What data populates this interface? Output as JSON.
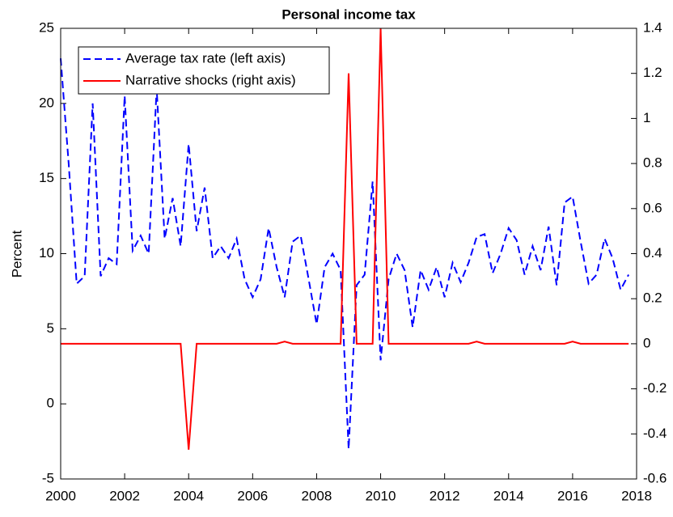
{
  "chart_data": {
    "type": "line",
    "title": "Personal income tax",
    "ylabel": "Percent",
    "x": [
      2000,
      2000.25,
      2000.5,
      2000.75,
      2001,
      2001.25,
      2001.5,
      2001.75,
      2002,
      2002.25,
      2002.5,
      2002.75,
      2003,
      2003.25,
      2003.5,
      2003.75,
      2004,
      2004.25,
      2004.5,
      2004.75,
      2005,
      2005.25,
      2005.5,
      2005.75,
      2006,
      2006.25,
      2006.5,
      2006.75,
      2007,
      2007.25,
      2007.5,
      2007.75,
      2008,
      2008.25,
      2008.5,
      2008.75,
      2009,
      2009.25,
      2009.5,
      2009.75,
      2010,
      2010.25,
      2010.5,
      2010.75,
      2011,
      2011.25,
      2011.5,
      2011.75,
      2012,
      2012.25,
      2012.5,
      2012.75,
      2013,
      2013.25,
      2013.5,
      2013.75,
      2014,
      2014.25,
      2014.5,
      2014.75,
      2015,
      2015.25,
      2015.5,
      2015.75,
      2016,
      2016.25,
      2016.5,
      2016.75,
      2017,
      2017.25,
      2017.5,
      2017.75
    ],
    "series": [
      {
        "name": "Average tax rate (left axis)",
        "color": "#0000ff",
        "dash": "dashed",
        "axis": "y",
        "values": [
          23,
          16,
          8,
          8.5,
          20,
          8.5,
          9.7,
          9.3,
          20.5,
          10.2,
          11.2,
          10,
          21,
          11,
          13.7,
          10.5,
          17.3,
          11.5,
          14.4,
          9.7,
          10.5,
          9.7,
          11,
          8.3,
          7.1,
          8.3,
          11.7,
          9.1,
          7.1,
          10.8,
          11.2,
          8.3,
          5.3,
          9.1,
          10,
          8.9,
          -3,
          7.9,
          8.6,
          14.8,
          2.9,
          8.3,
          10,
          8.9,
          5.1,
          8.9,
          7.6,
          9.1,
          7.1,
          9.4,
          8.1,
          9.4,
          11.1,
          11.3,
          8.7,
          10,
          11.7,
          10.9,
          8.6,
          10.5,
          8.9,
          11.8,
          7.9,
          13.4,
          13.8,
          10.8,
          8,
          8.6,
          11,
          9.7,
          7.6,
          8.6
        ]
      },
      {
        "name": "Narrative shocks (right axis)",
        "color": "#ff0000",
        "dash": "solid",
        "axis": "y2",
        "values": [
          0,
          0,
          0,
          0,
          0,
          0,
          0,
          0,
          0,
          0,
          0,
          0,
          0,
          0,
          0,
          0,
          -0.47,
          0,
          0,
          0,
          0,
          0,
          0,
          0,
          0,
          0,
          0,
          0,
          0.01,
          0,
          0,
          0,
          0,
          0,
          0,
          0,
          1.2,
          0,
          0,
          0,
          1.4,
          0,
          0,
          0,
          0,
          0,
          0,
          0,
          0,
          0,
          0,
          0,
          0.01,
          0,
          0,
          0,
          0,
          0,
          0,
          0,
          0,
          0,
          0,
          0,
          0.01,
          0,
          0,
          0,
          0,
          0,
          0,
          0
        ]
      }
    ],
    "xlim": [
      2000,
      2018
    ],
    "xticks": [
      2000,
      2002,
      2004,
      2006,
      2008,
      2010,
      2012,
      2014,
      2016,
      2018
    ],
    "ylim": [
      -5,
      25
    ],
    "yticks": [
      -5,
      0,
      5,
      10,
      15,
      20,
      25
    ],
    "y2lim": [
      -0.6,
      1.4
    ],
    "y2ticks": [
      -0.6,
      -0.4,
      -0.2,
      0,
      0.2,
      0.4,
      0.6,
      0.8,
      1,
      1.2,
      1.4
    ],
    "legend": "upper left"
  }
}
